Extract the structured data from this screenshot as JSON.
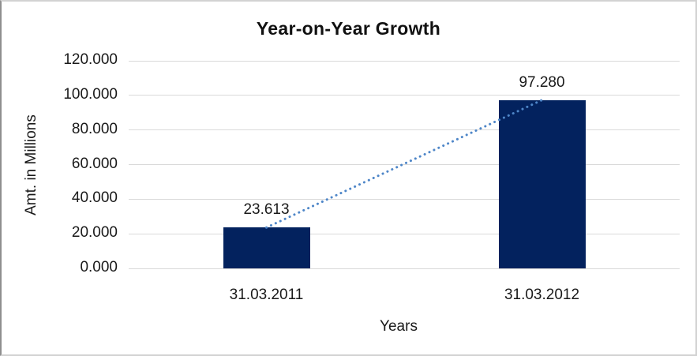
{
  "chart_data": {
    "type": "bar",
    "title": "Year-on-Year Growth",
    "xlabel": "Years",
    "ylabel": "Amt. in Millions",
    "categories": [
      "31.03.2011",
      "31.03.2012"
    ],
    "values": [
      23.613,
      97.28
    ],
    "data_labels": [
      "23.613",
      "97.280"
    ],
    "ylim": [
      0,
      120
    ],
    "y_ticks": [
      {
        "value": 0,
        "label": "0.000"
      },
      {
        "value": 20,
        "label": "20.000"
      },
      {
        "value": 40,
        "label": "40.000"
      },
      {
        "value": 60,
        "label": "60.000"
      },
      {
        "value": 80,
        "label": "80.000"
      },
      {
        "value": 100,
        "label": "100.000"
      },
      {
        "value": 120,
        "label": "120.000"
      }
    ],
    "grid": true,
    "legend": "none",
    "trendline": {
      "style": "dotted",
      "connects": [
        "31.03.2011",
        "31.03.2012"
      ]
    },
    "colors": {
      "bar": "#03225e",
      "trendline": "#4e86c8",
      "gridline": "#d9d9d9",
      "text": "#1a1a1a",
      "background": "#ffffff",
      "frame_border": "#d2d2d2"
    }
  }
}
